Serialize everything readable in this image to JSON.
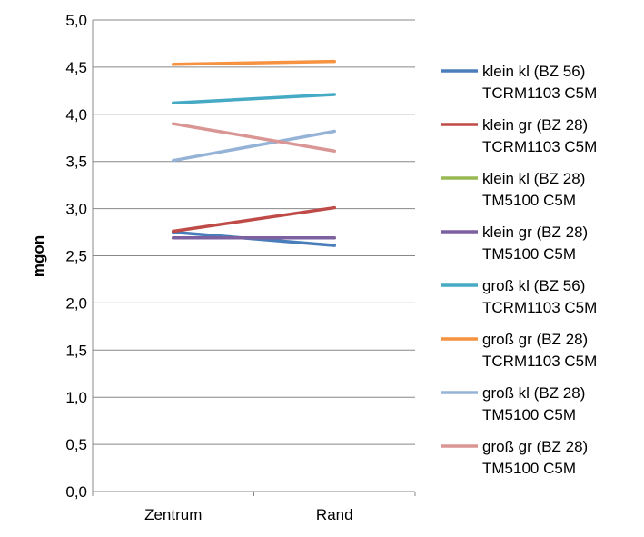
{
  "chart_data": {
    "type": "line",
    "title": "",
    "xlabel": "",
    "ylabel": "mgon",
    "categories": [
      "Zentrum",
      "Rand"
    ],
    "ylim": [
      0,
      5
    ],
    "yticks": [
      "0,0",
      "0,5",
      "1,0",
      "1,5",
      "2,0",
      "2,5",
      "3,0",
      "3,5",
      "4,0",
      "4,5",
      "5,0"
    ],
    "grid": true,
    "legend_position": "right",
    "series": [
      {
        "name": "klein kl (BZ 56) TCRM1103 C5M",
        "legend_lines": [
          "klein kl (BZ 56)",
          "TCRM1103 C5M"
        ],
        "color": "#4a7ebb",
        "values": [
          2.75,
          2.61
        ]
      },
      {
        "name": "klein gr (BZ 28) TCRM1103 C5M",
        "legend_lines": [
          "klein gr (BZ 28)",
          "TCRM1103 C5M"
        ],
        "color": "#be4b48",
        "values": [
          2.76,
          3.01
        ]
      },
      {
        "name": "klein kl (BZ 28) TM5100 C5M",
        "legend_lines": [
          "klein kl (BZ 28)",
          "TM5100 C5M"
        ],
        "color": "#98b954",
        "values": [
          2.69,
          2.69
        ]
      },
      {
        "name": "klein gr (BZ 28) TM5100 C5M",
        "legend_lines": [
          "klein gr (BZ 28)",
          "TM5100 C5M"
        ],
        "color": "#7d60a0",
        "values": [
          2.69,
          2.69
        ]
      },
      {
        "name": "groß kl (BZ 56) TCRM1103 C5M",
        "legend_lines": [
          "groß kl (BZ 56)",
          "TCRM1103 C5M"
        ],
        "color": "#46aac5",
        "values": [
          4.12,
          4.21
        ]
      },
      {
        "name": "groß gr (BZ 28) TCRM1103 C5M",
        "legend_lines": [
          "groß gr (BZ 28)",
          "TCRM1103 C5M"
        ],
        "color": "#f69240",
        "values": [
          4.53,
          4.56
        ]
      },
      {
        "name": "groß kl (BZ 28) TM5100 C5M",
        "legend_lines": [
          "groß kl (BZ 28)",
          "TM5100 C5M"
        ],
        "color": "#95b3d7",
        "values": [
          3.51,
          3.82
        ]
      },
      {
        "name": "groß gr (BZ 28) TM5100 C5M",
        "legend_lines": [
          "groß gr (BZ 28)",
          "TM5100 C5M"
        ],
        "color": "#d99694",
        "values": [
          3.9,
          3.61
        ]
      }
    ]
  }
}
